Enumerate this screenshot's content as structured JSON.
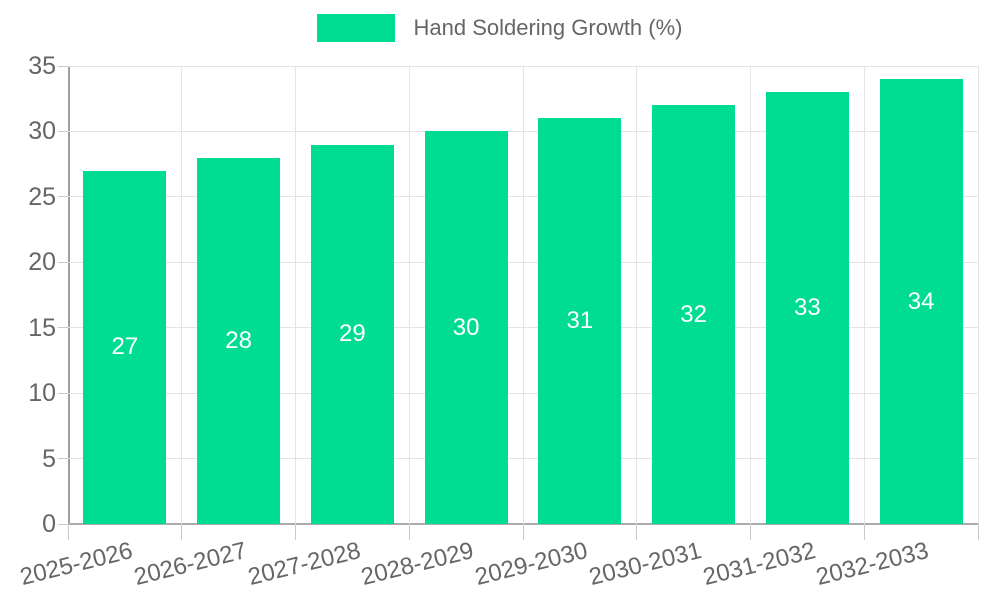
{
  "chart_data": {
    "type": "bar",
    "title": "Hand Soldering Growth (%)",
    "categories": [
      "2025-2026",
      "2026-2027",
      "2027-2028",
      "2028-2029",
      "2029-2030",
      "2030-2031",
      "2031-2032",
      "2032-2033"
    ],
    "values": [
      27,
      28,
      29,
      30,
      31,
      32,
      33,
      34
    ],
    "value_labels": [
      "27",
      "28",
      "29",
      "30",
      "31",
      "32",
      "33",
      "34"
    ],
    "yticks": [
      0,
      5,
      10,
      15,
      20,
      25,
      30,
      35
    ],
    "ylim": [
      0,
      35
    ],
    "xlabel": "",
    "ylabel": "",
    "grid": true,
    "legend_position": "top-center",
    "xtick_rotation_deg": -14,
    "colors": {
      "bar": "#00dc92",
      "value_label": "#ffffff",
      "axis_text": "#666666",
      "gridline": "#e5e5e5",
      "axis_line": "#9e9e9e",
      "background": "#ffffff"
    }
  },
  "legend": {
    "label": "Hand Soldering Growth (%)",
    "swatch_color": "#00dc92"
  }
}
